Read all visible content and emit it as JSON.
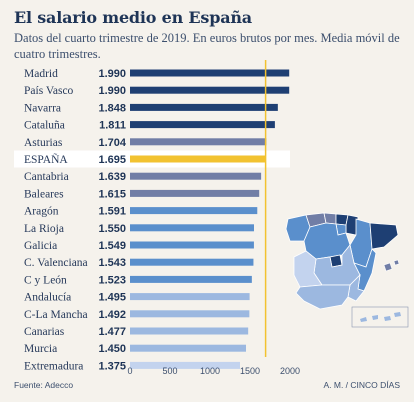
{
  "title": "El salario medio en España",
  "subtitle": "Datos del cuarto trimestre de 2019. En euros brutos por mes. Media móvil de cuatro trimestres.",
  "source": "Fuente: Adecco",
  "credit": "A. M. / CINCO DÍAS",
  "chart_data": {
    "type": "bar",
    "orientation": "horizontal",
    "title": "El salario medio en España",
    "subtitle": "Datos del cuarto trimestre de 2019. En euros brutos por mes. Media móvil de cuatro trimestres.",
    "categories": [
      "Madrid",
      "País Vasco",
      "Navarra",
      "Cataluña",
      "Asturias",
      "ESPAÑA",
      "Cantabria",
      "Baleares",
      "Aragón",
      "La Rioja",
      "Galicia",
      "C. Valenciana",
      "C y León",
      "Andalucía",
      "C-La Mancha",
      "Canarias",
      "Murcia",
      "Extremadura"
    ],
    "value_labels": [
      "1.990",
      "1.990",
      "1.848",
      "1.811",
      "1.704",
      "1.695",
      "1.639",
      "1.615",
      "1.591",
      "1.550",
      "1.549",
      "1.543",
      "1.523",
      "1.495",
      "1.492",
      "1.477",
      "1.450",
      "1.375"
    ],
    "values": [
      1990,
      1990,
      1848,
      1811,
      1704,
      1695,
      1639,
      1615,
      1591,
      1550,
      1549,
      1543,
      1523,
      1495,
      1492,
      1477,
      1450,
      1375
    ],
    "xlim": [
      0,
      2000
    ],
    "xticks": [
      "0",
      "500",
      "1000",
      "1500",
      "2000"
    ],
    "xtick_values": [
      0,
      500,
      1000,
      1500,
      2000
    ],
    "reference_value": 1695,
    "highlight_category": "ESPAÑA",
    "bar_colors": [
      "#1e3f73",
      "#1e3f73",
      "#1e3f73",
      "#1e3f73",
      "#717ea6",
      "#f2c230",
      "#717ea6",
      "#717ea6",
      "#5a8fcc",
      "#5a8fcc",
      "#5a8fcc",
      "#5a8fcc",
      "#5a8fcc",
      "#9cb8e0",
      "#9cb8e0",
      "#9cb8e0",
      "#9cb8e0",
      "#c3d3ee"
    ],
    "grid": false
  },
  "colors": {
    "background": "#f5f2ec",
    "highlight_row": "#ffffff",
    "reference_line": "#f2c230",
    "text": "#1e3456"
  },
  "map_icon": "spain-choropleth-map"
}
